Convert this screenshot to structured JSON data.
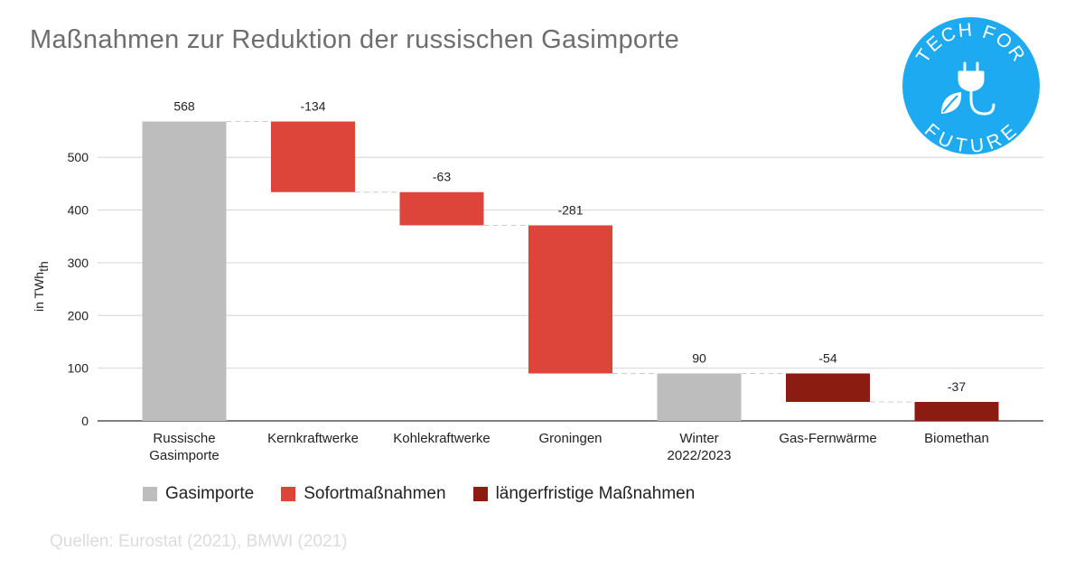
{
  "title": "Maßnahmen zur Reduktion der russischen Gasimporte",
  "logo": {
    "top_text": "TECH FOR",
    "bottom_text": "FUTURE",
    "color": "#1eaaf1"
  },
  "source": "Quellen: Eurostat (2021), BMWI (2021)",
  "legend": [
    {
      "label": "Gasimporte",
      "color": "#bdbdbd"
    },
    {
      "label": "Sofortmaßnahmen",
      "color": "#de453a"
    },
    {
      "label": "längerfristige Maßnahmen",
      "color": "#8b1c11"
    }
  ],
  "chart_data": {
    "type": "waterfall",
    "ylabel": "in TWh",
    "ylabel_sub": "th",
    "ylim": [
      0,
      568
    ],
    "yticks": [
      0,
      100,
      200,
      300,
      400,
      500
    ],
    "grid": true,
    "legend_position": "bottom",
    "bars": [
      {
        "category": [
          "Russische",
          "Gasimporte"
        ],
        "value": 568,
        "label": "568",
        "kind": "total",
        "group": "Gasimporte"
      },
      {
        "category": [
          "Kernkraftwerke"
        ],
        "value": -134,
        "label": "-134",
        "kind": "delta",
        "group": "Sofortmaßnahmen"
      },
      {
        "category": [
          "Kohlekraftwerke"
        ],
        "value": -63,
        "label": "-63",
        "kind": "delta",
        "group": "Sofortmaßnahmen"
      },
      {
        "category": [
          "Groningen"
        ],
        "value": -281,
        "label": "-281",
        "kind": "delta",
        "group": "Sofortmaßnahmen"
      },
      {
        "category": [
          "Winter",
          "2022/2023"
        ],
        "value": 90,
        "label": "90",
        "kind": "total",
        "group": "Gasimporte"
      },
      {
        "category": [
          "Gas-Fernwärme"
        ],
        "value": -54,
        "label": "-54",
        "kind": "delta",
        "group": "längerfristige Maßnahmen"
      },
      {
        "category": [
          "Biomethan"
        ],
        "value": -37,
        "label": "-37",
        "kind": "delta",
        "group": "längerfristige Maßnahmen"
      }
    ]
  }
}
